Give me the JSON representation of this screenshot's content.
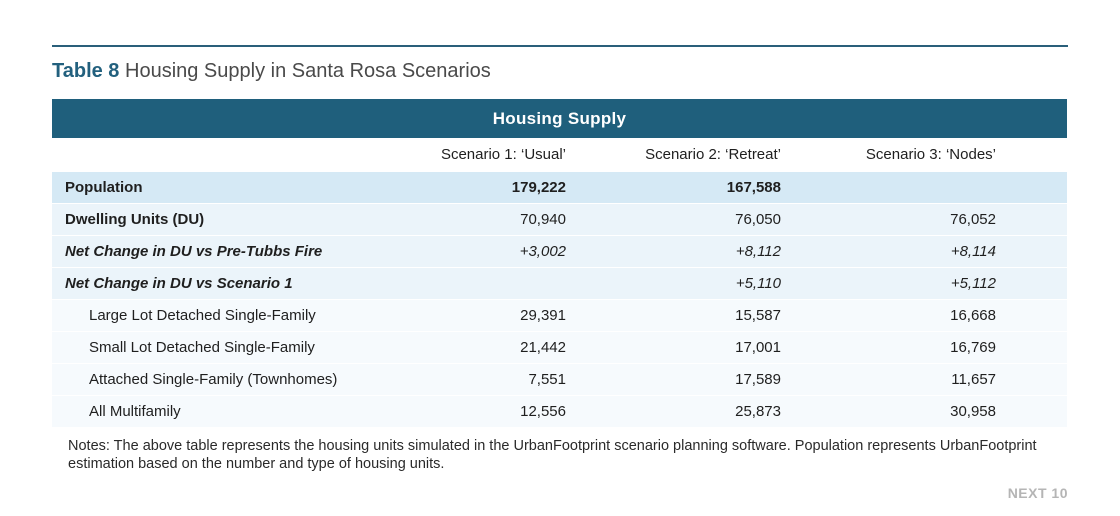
{
  "title": {
    "number": "Table 8",
    "text": "Housing Supply in Santa Rosa Scenarios"
  },
  "table": {
    "banner": "Housing Supply",
    "columns": [
      "",
      "Scenario 1: ‘Usual’",
      "Scenario 2: ‘Retreat’",
      "Scenario 3: ‘Nodes’"
    ],
    "rows": [
      {
        "label": "Population",
        "values": [
          "179,222",
          "167,588",
          ""
        ],
        "style": "bold"
      },
      {
        "label": "Dwelling Units (DU)",
        "values": [
          "70,940",
          "76,050",
          "76,052"
        ],
        "style": "bold"
      },
      {
        "label": "Net Change in DU vs Pre-Tubbs Fire",
        "values": [
          "+3,002",
          "+8,112",
          "+8,114"
        ],
        "style": "bold-italic"
      },
      {
        "label": "Net Change in DU vs Scenario 1",
        "values": [
          "",
          "+5,110",
          "+5,112"
        ],
        "style": "bold-italic"
      },
      {
        "label": "Large Lot Detached Single-Family",
        "values": [
          "29,391",
          "15,587",
          "16,668"
        ],
        "style": "indent"
      },
      {
        "label": "Small Lot Detached Single-Family",
        "values": [
          "21,442",
          "17,001",
          "16,769"
        ],
        "style": "indent"
      },
      {
        "label": "Attached Single-Family (Townhomes)",
        "values": [
          "7,551",
          "17,589",
          "11,657"
        ],
        "style": "indent"
      },
      {
        "label": "All Multifamily",
        "values": [
          "12,556",
          "25,873",
          "30,958"
        ],
        "style": "indent"
      }
    ]
  },
  "notes": "Notes: The above table represents the housing units simulated in the UrbanFootprint scenario planning software. Population represents UrbanFootprint estimation based on the number and type of housing units.",
  "footer": {
    "next_label": "NEXT",
    "page_number": "10"
  },
  "colors": {
    "accent": "#1f5f7c",
    "row_dark": "#d5e9f5",
    "row_light": "#ebf4fa",
    "row_pale": "#f6fafd"
  }
}
